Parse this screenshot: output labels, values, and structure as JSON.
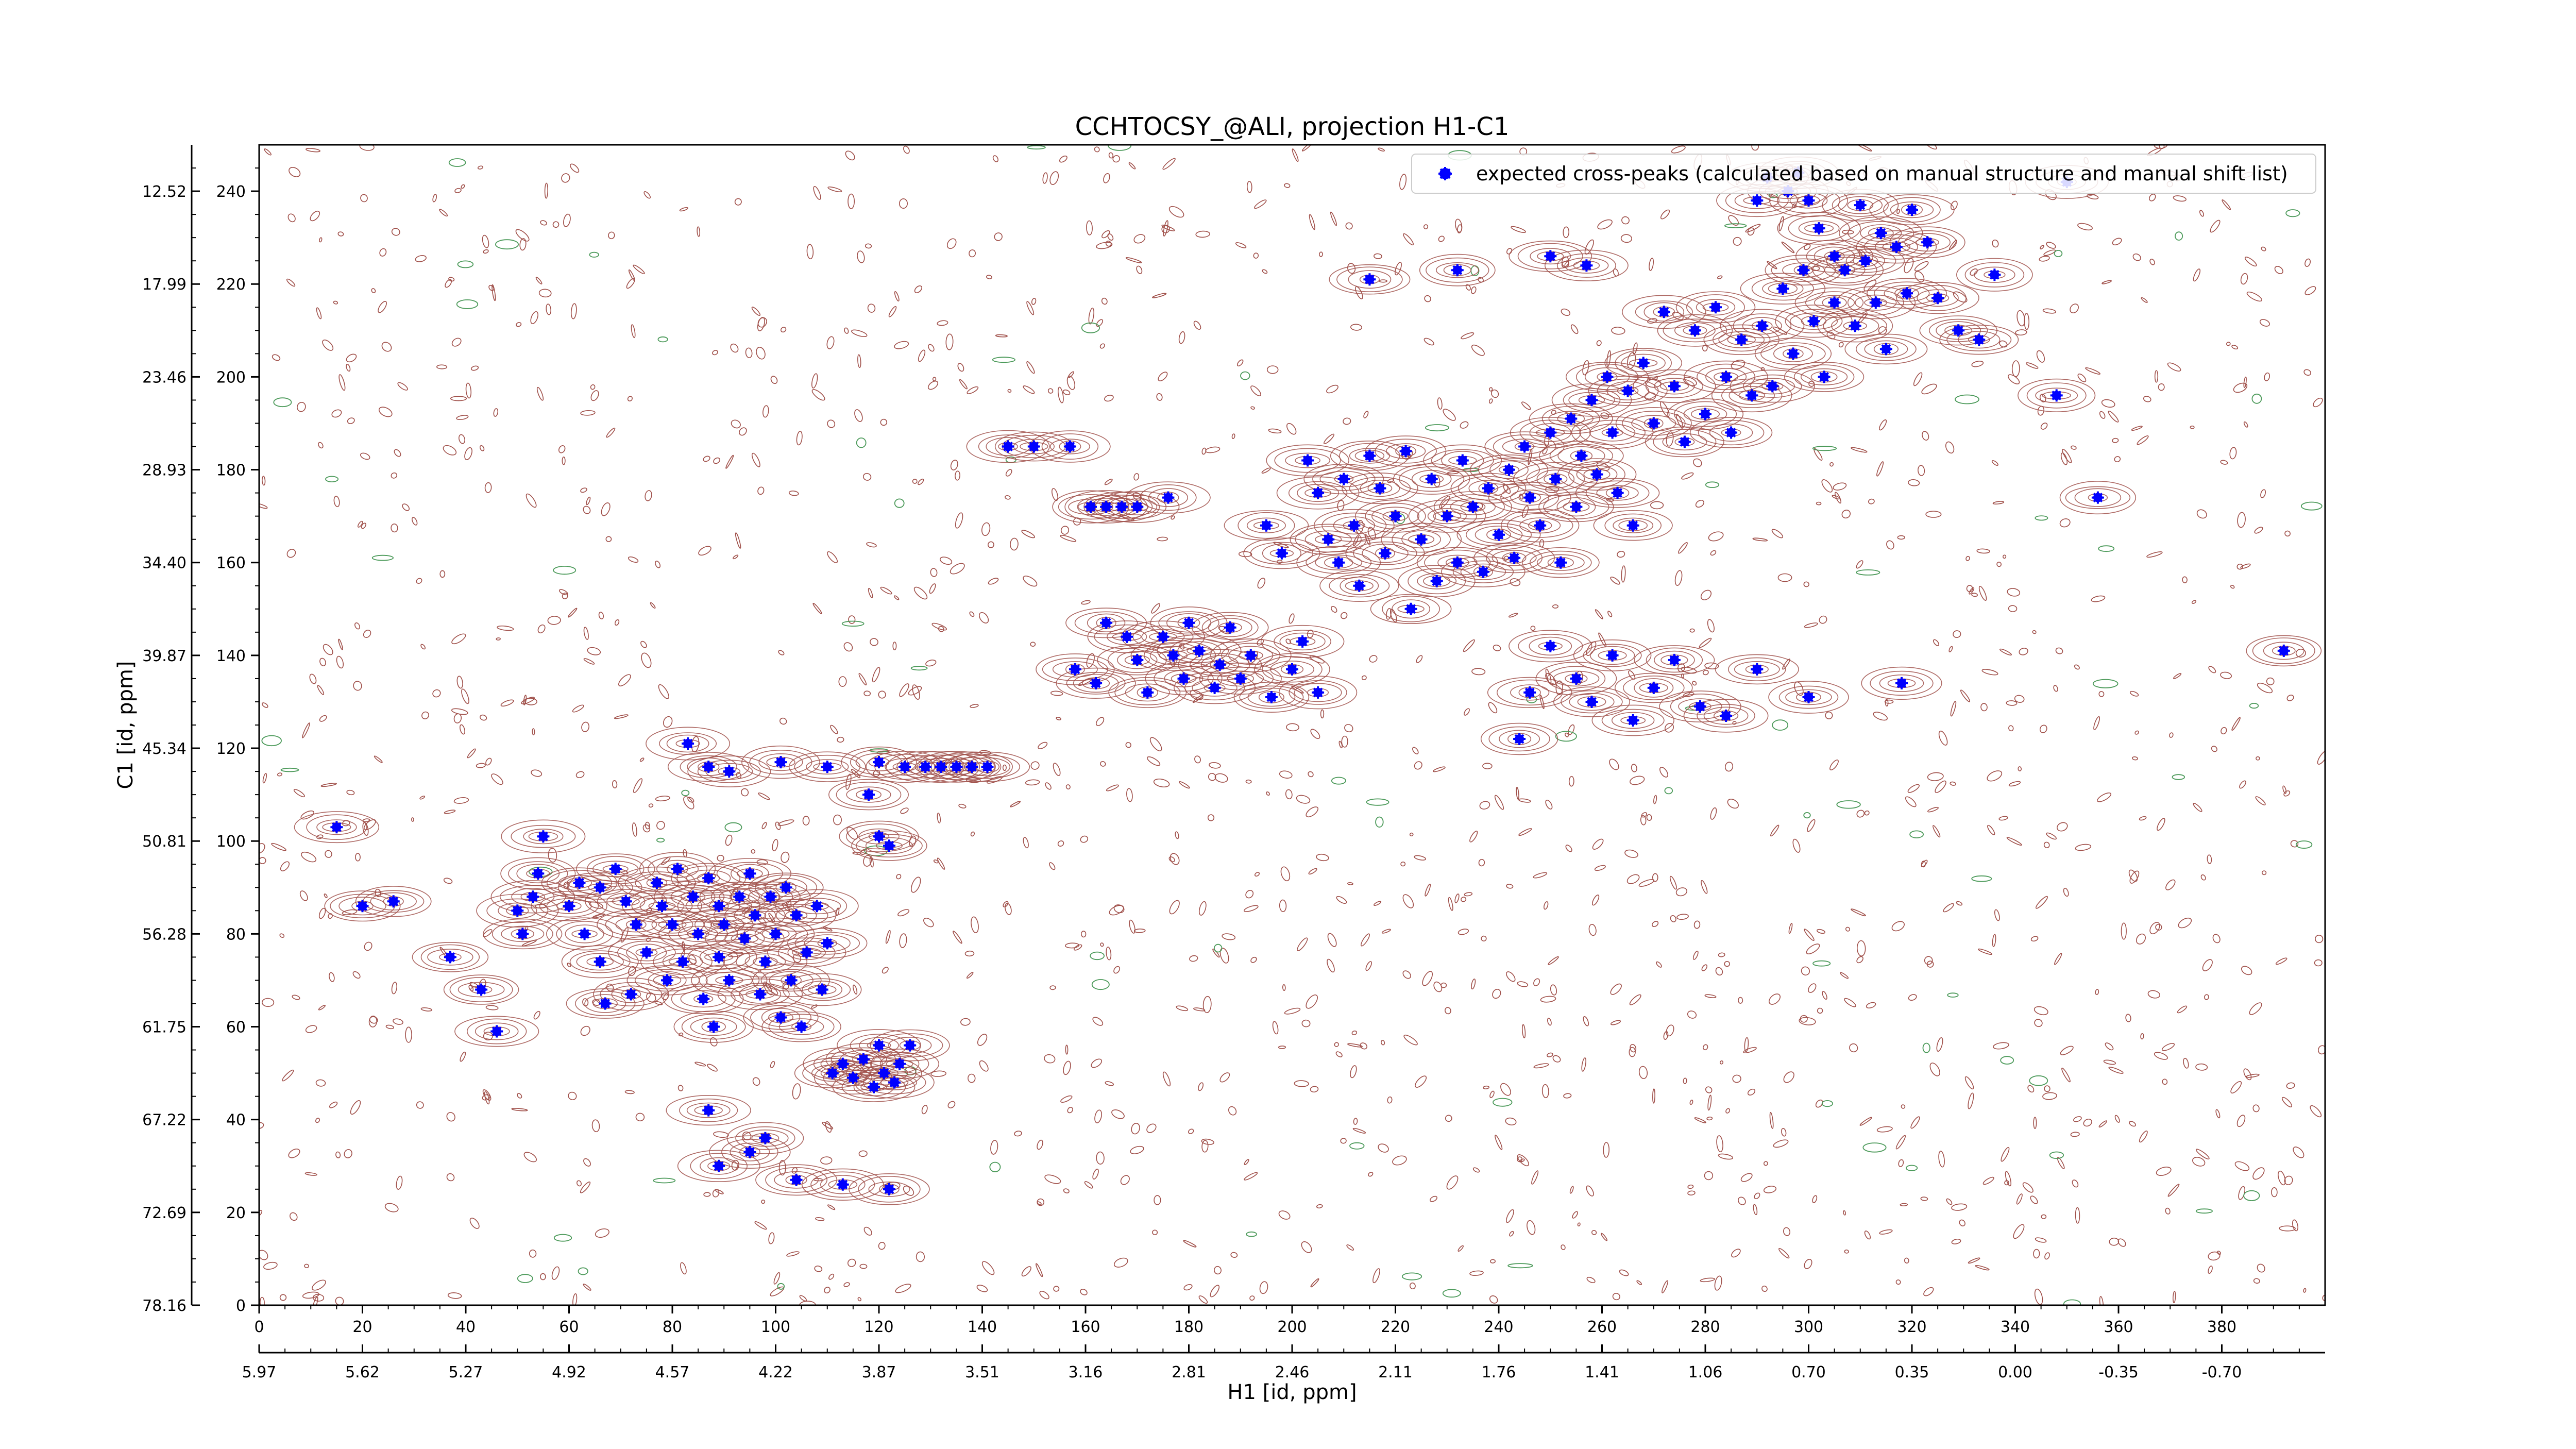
{
  "chart_data": {
    "type": "scatter",
    "title": "CCHTOCSY_@ALI, projection H1-C1",
    "xlabel": "H1 [id, ppm]",
    "ylabel": "C1 [id, ppm]",
    "xlim": [
      0,
      400
    ],
    "ylim": [
      0,
      250
    ],
    "x_ticks": [
      0,
      20,
      40,
      60,
      80,
      100,
      120,
      140,
      160,
      180,
      200,
      220,
      240,
      260,
      280,
      300,
      320,
      340,
      360,
      380
    ],
    "y_ticks": [
      0,
      20,
      40,
      60,
      80,
      100,
      120,
      140,
      160,
      180,
      200,
      220,
      240
    ],
    "ppm_x_ticks": [
      {
        "pos": 0,
        "label": "5.97"
      },
      {
        "pos": 20,
        "label": "5.62"
      },
      {
        "pos": 40,
        "label": "5.27"
      },
      {
        "pos": 60,
        "label": "4.92"
      },
      {
        "pos": 80,
        "label": "4.57"
      },
      {
        "pos": 100,
        "label": "4.22"
      },
      {
        "pos": 120,
        "label": "3.87"
      },
      {
        "pos": 140,
        "label": "3.51"
      },
      {
        "pos": 160,
        "label": "3.16"
      },
      {
        "pos": 180,
        "label": "2.81"
      },
      {
        "pos": 200,
        "label": "2.46"
      },
      {
        "pos": 220,
        "label": "2.11"
      },
      {
        "pos": 240,
        "label": "1.76"
      },
      {
        "pos": 260,
        "label": "1.41"
      },
      {
        "pos": 280,
        "label": "1.06"
      },
      {
        "pos": 300,
        "label": "0.70"
      },
      {
        "pos": 320,
        "label": "0.35"
      },
      {
        "pos": 340,
        "label": "0.00"
      },
      {
        "pos": 360,
        "label": "-0.35"
      },
      {
        "pos": 380,
        "label": "-0.70"
      }
    ],
    "ppm_y_ticks": [
      {
        "pos": 0,
        "label": "78.16"
      },
      {
        "pos": 20,
        "label": "72.69"
      },
      {
        "pos": 40,
        "label": "67.22"
      },
      {
        "pos": 60,
        "label": "61.75"
      },
      {
        "pos": 80,
        "label": "56.28"
      },
      {
        "pos": 100,
        "label": "50.81"
      },
      {
        "pos": 120,
        "label": "45.34"
      },
      {
        "pos": 140,
        "label": "39.87"
      },
      {
        "pos": 160,
        "label": "34.40"
      },
      {
        "pos": 180,
        "label": "28.93"
      },
      {
        "pos": 200,
        "label": "23.46"
      },
      {
        "pos": 220,
        "label": "17.99"
      },
      {
        "pos": 240,
        "label": "12.52"
      }
    ],
    "legend": {
      "placement": "top-right",
      "label": "expected cross-peaks (calculated based on manual structure and manual shift list)"
    },
    "colors": {
      "marker": "#0000ff",
      "contour_positive": "#a0504a",
      "contour_negative": "#4c9a5a"
    },
    "series": [
      {
        "points": [
          [
            15,
            103
          ],
          [
            20,
            86
          ],
          [
            26,
            87
          ],
          [
            37,
            75
          ],
          [
            43,
            68
          ],
          [
            46,
            59
          ],
          [
            50,
            85
          ],
          [
            51,
            80
          ],
          [
            53,
            88
          ],
          [
            54,
            93
          ],
          [
            55,
            101
          ],
          [
            60,
            86
          ],
          [
            62,
            91
          ],
          [
            63,
            80
          ],
          [
            66,
            90
          ],
          [
            66,
            74
          ],
          [
            67,
            65
          ],
          [
            69,
            94
          ],
          [
            71,
            87
          ],
          [
            72,
            67
          ],
          [
            73,
            82
          ],
          [
            75,
            76
          ],
          [
            77,
            91
          ],
          [
            78,
            86
          ],
          [
            79,
            70
          ],
          [
            80,
            82
          ],
          [
            81,
            94
          ],
          [
            82,
            74
          ],
          [
            84,
            88
          ],
          [
            85,
            80
          ],
          [
            86,
            66
          ],
          [
            87,
            92
          ],
          [
            88,
            60
          ],
          [
            89,
            86
          ],
          [
            89,
            75
          ],
          [
            90,
            82
          ],
          [
            91,
            70
          ],
          [
            93,
            88
          ],
          [
            94,
            79
          ],
          [
            95,
            93
          ],
          [
            96,
            84
          ],
          [
            97,
            67
          ],
          [
            98,
            74
          ],
          [
            99,
            88
          ],
          [
            100,
            80
          ],
          [
            101,
            62
          ],
          [
            102,
            90
          ],
          [
            103,
            70
          ],
          [
            104,
            84
          ],
          [
            105,
            60
          ],
          [
            106,
            76
          ],
          [
            108,
            86
          ],
          [
            109,
            68
          ],
          [
            110,
            78
          ],
          [
            111,
            50
          ],
          [
            113,
            52
          ],
          [
            115,
            49
          ],
          [
            117,
            53
          ],
          [
            119,
            47
          ],
          [
            120,
            56
          ],
          [
            121,
            50
          ],
          [
            123,
            48
          ],
          [
            124,
            52
          ],
          [
            126,
            56
          ],
          [
            87,
            42
          ],
          [
            89,
            30
          ],
          [
            95,
            33
          ],
          [
            98,
            36
          ],
          [
            104,
            27
          ],
          [
            113,
            26
          ],
          [
            122,
            25
          ],
          [
            83,
            121
          ],
          [
            87,
            116
          ],
          [
            91,
            115
          ],
          [
            101,
            117
          ],
          [
            110,
            116
          ],
          [
            120,
            117
          ],
          [
            125,
            116
          ],
          [
            129,
            116
          ],
          [
            132,
            116
          ],
          [
            135,
            116
          ],
          [
            138,
            116
          ],
          [
            141,
            116
          ],
          [
            118,
            110
          ],
          [
            120,
            101
          ],
          [
            122,
            99
          ],
          [
            145,
            185
          ],
          [
            150,
            185
          ],
          [
            157,
            185
          ],
          [
            161,
            172
          ],
          [
            164,
            172
          ],
          [
            167,
            172
          ],
          [
            170,
            172
          ],
          [
            176,
            174
          ],
          [
            158,
            137
          ],
          [
            162,
            134
          ],
          [
            164,
            147
          ],
          [
            168,
            144
          ],
          [
            170,
            139
          ],
          [
            172,
            132
          ],
          [
            175,
            144
          ],
          [
            177,
            140
          ],
          [
            179,
            135
          ],
          [
            180,
            147
          ],
          [
            182,
            141
          ],
          [
            185,
            133
          ],
          [
            186,
            138
          ],
          [
            188,
            146
          ],
          [
            190,
            135
          ],
          [
            192,
            140
          ],
          [
            196,
            131
          ],
          [
            200,
            137
          ],
          [
            202,
            143
          ],
          [
            205,
            132
          ],
          [
            195,
            168
          ],
          [
            198,
            162
          ],
          [
            203,
            182
          ],
          [
            205,
            175
          ],
          [
            207,
            165
          ],
          [
            209,
            160
          ],
          [
            210,
            178
          ],
          [
            212,
            168
          ],
          [
            213,
            155
          ],
          [
            215,
            183
          ],
          [
            217,
            176
          ],
          [
            218,
            162
          ],
          [
            220,
            170
          ],
          [
            222,
            184
          ],
          [
            223,
            150
          ],
          [
            225,
            165
          ],
          [
            227,
            178
          ],
          [
            228,
            156
          ],
          [
            230,
            170
          ],
          [
            232,
            160
          ],
          [
            233,
            182
          ],
          [
            235,
            172
          ],
          [
            237,
            158
          ],
          [
            238,
            176
          ],
          [
            240,
            166
          ],
          [
            242,
            180
          ],
          [
            243,
            161
          ],
          [
            245,
            185
          ],
          [
            246,
            174
          ],
          [
            248,
            168
          ],
          [
            250,
            188
          ],
          [
            251,
            178
          ],
          [
            252,
            160
          ],
          [
            254,
            191
          ],
          [
            255,
            172
          ],
          [
            256,
            183
          ],
          [
            258,
            195
          ],
          [
            259,
            179
          ],
          [
            261,
            200
          ],
          [
            262,
            188
          ],
          [
            263,
            175
          ],
          [
            265,
            197
          ],
          [
            266,
            168
          ],
          [
            268,
            203
          ],
          [
            270,
            190
          ],
          [
            272,
            214
          ],
          [
            274,
            198
          ],
          [
            276,
            186
          ],
          [
            278,
            210
          ],
          [
            280,
            192
          ],
          [
            282,
            215
          ],
          [
            284,
            200
          ],
          [
            285,
            188
          ],
          [
            287,
            208
          ],
          [
            289,
            196
          ],
          [
            291,
            211
          ],
          [
            293,
            198
          ],
          [
            295,
            219
          ],
          [
            297,
            205
          ],
          [
            299,
            223
          ],
          [
            301,
            212
          ],
          [
            303,
            200
          ],
          [
            305,
            216
          ],
          [
            307,
            223
          ],
          [
            309,
            211
          ],
          [
            311,
            225
          ],
          [
            313,
            216
          ],
          [
            315,
            206
          ],
          [
            317,
            228
          ],
          [
            319,
            218
          ],
          [
            320,
            236
          ],
          [
            323,
            229
          ],
          [
            325,
            217
          ],
          [
            329,
            210
          ],
          [
            333,
            208
          ],
          [
            336,
            222
          ],
          [
            348,
            196
          ],
          [
            356,
            174
          ],
          [
            392,
            141
          ],
          [
            250,
            142
          ],
          [
            255,
            135
          ],
          [
            258,
            130
          ],
          [
            262,
            140
          ],
          [
            266,
            126
          ],
          [
            270,
            133
          ],
          [
            274,
            139
          ],
          [
            279,
            129
          ],
          [
            284,
            127
          ],
          [
            290,
            137
          ],
          [
            300,
            131
          ],
          [
            318,
            134
          ],
          [
            244,
            122
          ],
          [
            246,
            132
          ],
          [
            290,
            238
          ],
          [
            292,
            243
          ],
          [
            296,
            240
          ],
          [
            298,
            244
          ],
          [
            300,
            238
          ],
          [
            302,
            232
          ],
          [
            305,
            226
          ],
          [
            310,
            237
          ],
          [
            314,
            231
          ],
          [
            350,
            242
          ],
          [
            215,
            221
          ],
          [
            232,
            223
          ],
          [
            250,
            226
          ],
          [
            257,
            224
          ]
        ]
      }
    ]
  }
}
